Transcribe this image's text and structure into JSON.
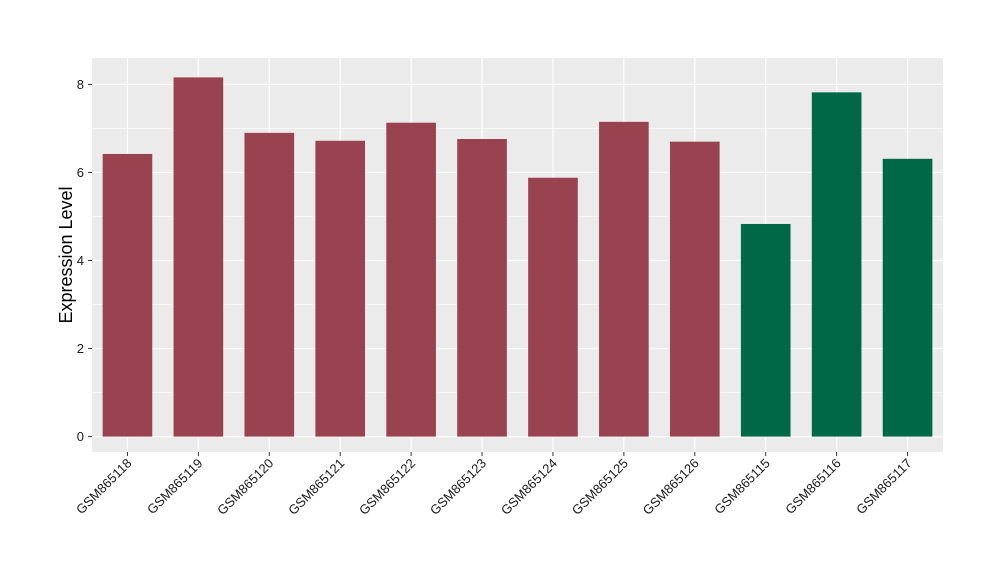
{
  "chart_data": {
    "type": "bar",
    "title": "",
    "xlabel": "",
    "ylabel": "Expression Level",
    "ylim": [
      -0.35,
      8.6
    ],
    "yticks": [
      0,
      2,
      4,
      6,
      8
    ],
    "grid": true,
    "categories": [
      "GSM865118",
      "GSM865119",
      "GSM865120",
      "GSM865121",
      "GSM865122",
      "GSM865123",
      "GSM865124",
      "GSM865125",
      "GSM865126",
      "GSM865115",
      "GSM865116",
      "GSM865117"
    ],
    "values": [
      6.42,
      8.16,
      6.9,
      6.72,
      7.13,
      6.76,
      5.88,
      7.15,
      6.7,
      4.83,
      7.82,
      6.31
    ],
    "groups": [
      "a",
      "a",
      "a",
      "a",
      "a",
      "a",
      "a",
      "a",
      "a",
      "b",
      "b",
      "b"
    ],
    "colors": {
      "a": "#9a4350",
      "b": "#006847"
    },
    "panel_background": "#ebebeb",
    "grid_color": "#ffffff"
  }
}
